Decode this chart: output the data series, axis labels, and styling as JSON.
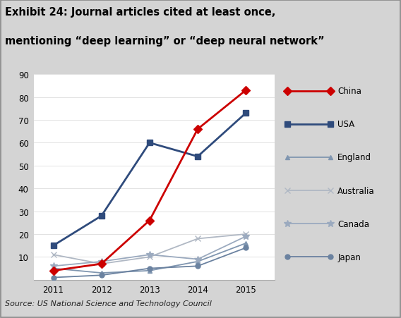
{
  "title_line1": "Exhibit 24: Journal articles cited at least once,",
  "title_line2": "mentioning “deep learning” or “deep neural network”",
  "source": "Source: US National Science and Technology Council",
  "years": [
    2011,
    2012,
    2013,
    2014,
    2015
  ],
  "series": [
    {
      "name": "China",
      "values": [
        4,
        7,
        26,
        66,
        83
      ],
      "color": "#cc0000",
      "marker": "D",
      "linewidth": 2.0,
      "markersize": 6,
      "zorder": 5
    },
    {
      "name": "USA",
      "values": [
        15,
        28,
        60,
        54,
        73
      ],
      "color": "#2f4b7c",
      "marker": "s",
      "linewidth": 2.0,
      "markersize": 6,
      "zorder": 4
    },
    {
      "name": "England",
      "values": [
        5,
        3,
        4,
        8,
        16
      ],
      "color": "#8096b0",
      "marker": "^",
      "linewidth": 1.3,
      "markersize": 5,
      "zorder": 3
    },
    {
      "name": "Australia",
      "values": [
        11,
        7,
        10,
        18,
        20
      ],
      "color": "#b0b8c4",
      "marker": "x",
      "linewidth": 1.3,
      "markersize": 6,
      "zorder": 3
    },
    {
      "name": "Canada",
      "values": [
        6,
        8,
        11,
        9,
        19
      ],
      "color": "#9baabf",
      "marker": "*",
      "linewidth": 1.3,
      "markersize": 7,
      "zorder": 3
    },
    {
      "name": "Japan",
      "values": [
        1,
        2,
        5,
        6,
        14
      ],
      "color": "#6b82a0",
      "marker": "o",
      "linewidth": 1.3,
      "markersize": 5,
      "zorder": 3
    }
  ],
  "ylim": [
    0,
    90
  ],
  "yticks": [
    0,
    10,
    20,
    30,
    40,
    50,
    60,
    70,
    80,
    90
  ],
  "fig_bg": "#d4d4d4",
  "title_bg": "#c8c8c8",
  "plot_bg": "#ffffff",
  "source_bg": "#d4d4d4",
  "border_color": "#888888"
}
